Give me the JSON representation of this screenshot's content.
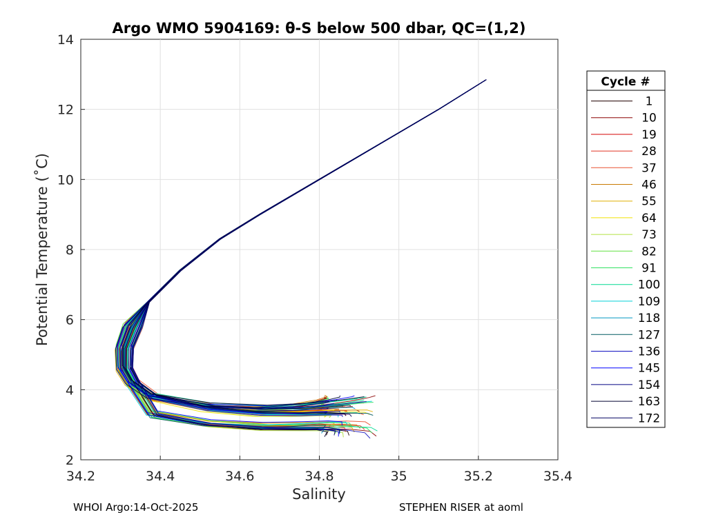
{
  "chart_data": {
    "type": "line",
    "title": "Argo WMO 5904169: θ-S below 500 dbar,  QC=(1,2)",
    "xlabel": "Salinity",
    "ylabel": "Potential Temperature (˚C)",
    "xlim": [
      34.2,
      35.4
    ],
    "ylim": [
      2,
      14
    ],
    "xticks": [
      34.2,
      34.4,
      34.6,
      34.8,
      35,
      35.2,
      35.4
    ],
    "yticks": [
      2,
      4,
      6,
      8,
      10,
      12,
      14
    ],
    "grid": true,
    "legend": {
      "title": "Cycle #",
      "placement": "outside-right",
      "entries": [
        {
          "label": "1",
          "color": "#200000"
        },
        {
          "label": "10",
          "color": "#8b0000"
        },
        {
          "label": "19",
          "color": "#d40000"
        },
        {
          "label": "28",
          "color": "#e03020"
        },
        {
          "label": "37",
          "color": "#e85030"
        },
        {
          "label": "46",
          "color": "#c87800"
        },
        {
          "label": "55",
          "color": "#e0b000"
        },
        {
          "label": "64",
          "color": "#f0e000"
        },
        {
          "label": "73",
          "color": "#b0e040"
        },
        {
          "label": "82",
          "color": "#60e040"
        },
        {
          "label": "91",
          "color": "#30e060"
        },
        {
          "label": "100",
          "color": "#00d890"
        },
        {
          "label": "109",
          "color": "#00d0d8"
        },
        {
          "label": "118",
          "color": "#0098c0"
        },
        {
          "label": "127",
          "color": "#005a60"
        },
        {
          "label": "136",
          "color": "#1010c0"
        },
        {
          "label": "145",
          "color": "#0000ff"
        },
        {
          "label": "154",
          "color": "#000080"
        },
        {
          "label": "163",
          "color": "#000030"
        },
        {
          "label": "172",
          "color": "#000060"
        }
      ]
    },
    "representative_profile": {
      "salinity": [
        35.22,
        35.1,
        34.95,
        34.8,
        34.65,
        34.55,
        34.45,
        34.37,
        34.33,
        34.31,
        34.31,
        34.33,
        34.38,
        34.45,
        34.55,
        34.65,
        34.75,
        34.85,
        34.93
      ],
      "theta": [
        12.85,
        12.0,
        11.0,
        10.0,
        9.0,
        8.3,
        7.4,
        6.5,
        5.8,
        5.2,
        4.6,
        4.2,
        3.8,
        3.5,
        3.35,
        3.35,
        3.45,
        3.6,
        3.7
      ]
    },
    "deep_end_ranges": {
      "salinity": [
        34.8,
        34.95
      ],
      "theta": [
        2.6,
        3.85
      ]
    }
  },
  "footer": {
    "left": "WHOI Argo:14-Oct-2025",
    "right": "STEPHEN RISER at aoml"
  }
}
